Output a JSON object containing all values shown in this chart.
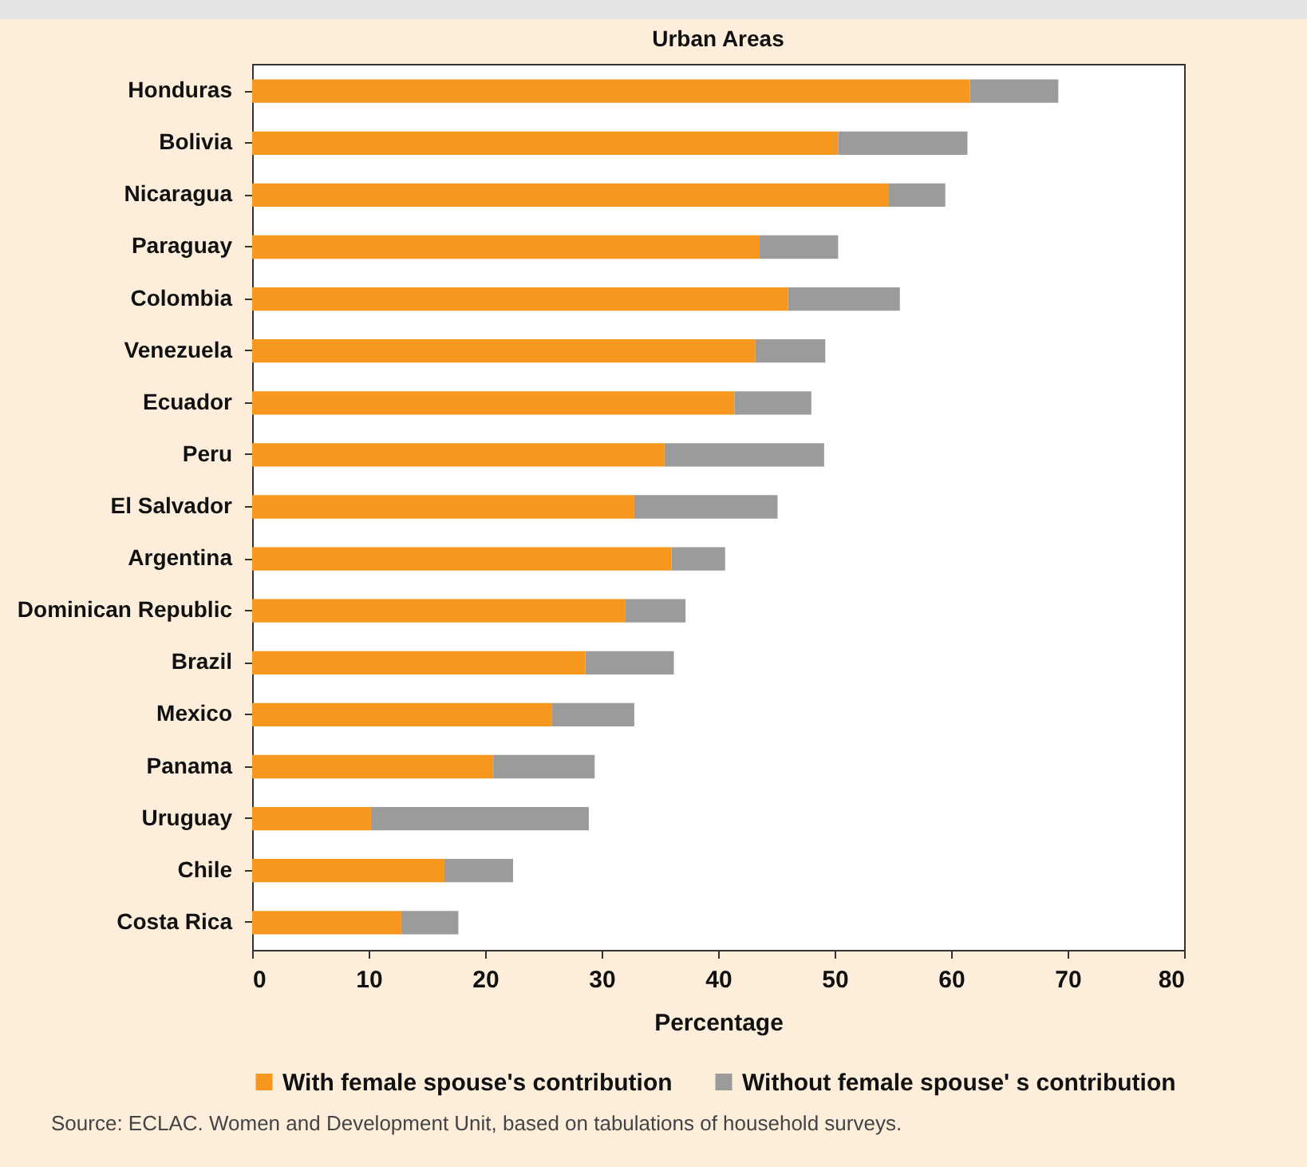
{
  "chart_data": {
    "type": "bar",
    "orientation": "horizontal",
    "stacked": true,
    "title": "Urban Areas",
    "xlabel": "Percentage",
    "categories": [
      "Honduras",
      "Bolivia",
      "Nicaragua",
      "Paraguay",
      "Colombia",
      "Venezuela",
      "Ecuador",
      "Peru",
      "El Salvador",
      "Argentina",
      "Dominican Republic",
      "Brazil",
      "Mexico",
      "Panama",
      "Uruguay",
      "Chile",
      "Costa Rica"
    ],
    "series": [
      {
        "name": "With female spouse's contribution",
        "color": "#f7971d",
        "values": [
          61.6,
          50.3,
          54.6,
          43.5,
          46.0,
          43.2,
          41.4,
          35.4,
          32.8,
          36.0,
          32.0,
          28.6,
          25.7,
          20.7,
          10.2,
          16.5,
          12.8
        ]
      },
      {
        "name": "Without female spouse' s contribution",
        "color": "#9b9b9b",
        "values": [
          7.6,
          11.1,
          4.9,
          6.8,
          9.6,
          6.0,
          6.6,
          13.7,
          12.3,
          4.6,
          5.2,
          7.6,
          7.1,
          8.7,
          18.7,
          5.9,
          4.9
        ]
      }
    ],
    "xlim": [
      0,
      80
    ],
    "xticks": [
      0,
      10,
      20,
      30,
      40,
      50,
      60,
      70,
      80
    ],
    "grid": false,
    "legend": "bottom",
    "annotations": [
      "Source: ECLAC. Women and Development Unit, based on tabulations of household surveys."
    ]
  }
}
